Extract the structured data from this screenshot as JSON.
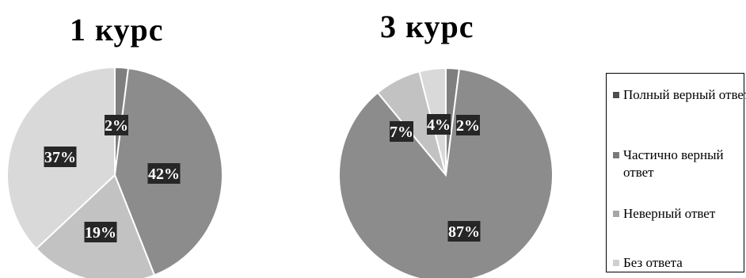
{
  "chart_data": [
    {
      "type": "pie",
      "title": "1 курс",
      "categories": [
        "Полный верный ответ",
        "Частично верный ответ",
        "Неверный ответ",
        "Без ответа"
      ],
      "values": [
        2,
        42,
        19,
        37
      ],
      "labels": [
        "2%",
        "42%",
        "19%",
        "37%"
      ],
      "colors": [
        "#7f7f7f",
        "#8c8c8c",
        "#c2c2c2",
        "#d9d9d9"
      ]
    },
    {
      "type": "pie",
      "title": "3 курс",
      "categories": [
        "Полный верный ответ",
        "Частично верный ответ",
        "Неверный ответ",
        "Без ответа"
      ],
      "values": [
        2,
        87,
        7,
        4
      ],
      "labels": [
        "2%",
        "87%",
        "7%",
        "4%"
      ],
      "colors": [
        "#7f7f7f",
        "#8c8c8c",
        "#c2c2c2",
        "#d9d9d9"
      ]
    }
  ],
  "legend": {
    "placement": "right",
    "items": [
      {
        "label": "Полный верный ответ",
        "color": "#4d4d4d"
      },
      {
        "label": "Частично верный ответ",
        "color": "#7a7a7a"
      },
      {
        "label": "Неверный ответ",
        "color": "#a6a6a6"
      },
      {
        "label": "Без ответа",
        "color": "#cfcfcf"
      }
    ]
  }
}
